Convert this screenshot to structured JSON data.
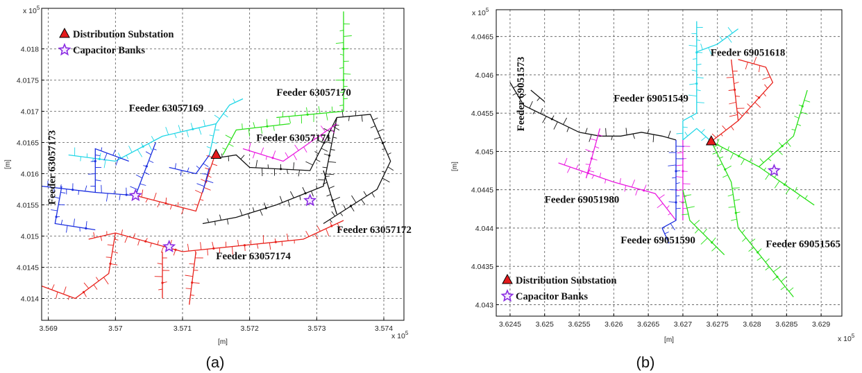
{
  "colors": {
    "red": "#e8201a",
    "cyan": "#1fd6e6",
    "green": "#27e016",
    "black": "#111111",
    "magenta": "#ea1ae0",
    "blue": "#1a2ee0",
    "purple": "#8a2be2"
  },
  "chart_data": [
    {
      "type": "map",
      "panel_label": "(a)",
      "xlabel": "[m]",
      "ylabel": "[m]",
      "x_multiplier": "x 10",
      "x_multiplier_exp": "5",
      "y_multiplier": "x 10",
      "y_multiplier_exp": "5",
      "xlim": [
        3.5689,
        3.5743
      ],
      "ylim": [
        4.01365,
        4.01865
      ],
      "x_ticks": [
        "3.569",
        "3.57",
        "3.571",
        "3.572",
        "3.573",
        "3.574"
      ],
      "x_tick_values": [
        3.569,
        3.57,
        3.571,
        3.572,
        3.573,
        3.574
      ],
      "y_ticks": [
        "4.014",
        "4.0145",
        "4.015",
        "4.0155",
        "4.016",
        "4.0165",
        "4.017",
        "4.0175",
        "4.018"
      ],
      "y_tick_values": [
        4.014,
        4.0145,
        4.015,
        4.0155,
        4.016,
        4.0165,
        4.017,
        4.0175,
        4.018
      ],
      "grid": true,
      "legend": {
        "substation": "Distribution Substation",
        "capacitor": "Capacitor Banks",
        "placement": "top-left"
      },
      "substation": {
        "x": 3.5715,
        "y": 4.0163
      },
      "capacitors": [
        {
          "x": 3.5703,
          "y": 4.01565
        },
        {
          "x": 3.5708,
          "y": 4.01483
        },
        {
          "x": 3.5729,
          "y": 4.01557
        }
      ],
      "feeders": [
        {
          "name": "Feeder 63057173",
          "color": "blue",
          "label_at": [
            3.5691,
            4.0161
          ],
          "rotate": true
        },
        {
          "name": "Feeder 63057169",
          "color": "cyan",
          "label_at": [
            3.5702,
            4.017
          ]
        },
        {
          "name": "Feeder 63057170",
          "color": "green",
          "label_at": [
            3.5724,
            4.01725
          ]
        },
        {
          "name": "Feeder 63057171",
          "color": "magenta",
          "label_at": [
            3.5721,
            4.01652
          ]
        },
        {
          "name": "Feeder 63057172",
          "color": "black",
          "label_at": [
            3.5733,
            4.01505
          ]
        },
        {
          "name": "Feeder 63057174",
          "color": "red",
          "label_at": [
            3.5715,
            4.01463
          ]
        }
      ],
      "trunks": [
        {
          "color": "red",
          "pts": [
            [
              3.5696,
              4.01495
            ],
            [
              3.57,
              4.01505
            ],
            [
              3.571,
              4.01475
            ],
            [
              3.5728,
              4.01495
            ],
            [
              3.5734,
              4.01525
            ]
          ]
        },
        {
          "color": "red",
          "pts": [
            [
              3.5703,
              4.01565
            ],
            [
              3.5712,
              4.0154
            ],
            [
              3.5715,
              4.01635
            ]
          ]
        },
        {
          "color": "red",
          "pts": [
            [
              3.57,
              4.01505
            ],
            [
              3.5699,
              4.0144
            ],
            [
              3.5694,
              4.014
            ],
            [
              3.5689,
              4.0142
            ]
          ]
        },
        {
          "color": "red",
          "pts": [
            [
              3.5712,
              4.01475
            ],
            [
              3.5711,
              4.0139
            ]
          ]
        },
        {
          "color": "red",
          "pts": [
            [
              3.5707,
              4.01475
            ],
            [
              3.5707,
              4.014
            ]
          ]
        },
        {
          "color": "black",
          "pts": [
            [
              3.5715,
              4.01625
            ],
            [
              3.5718,
              4.0163
            ],
            [
              3.572,
              4.0161
            ],
            [
              3.5729,
              4.01605
            ],
            [
              3.5733,
              4.0169
            ],
            [
              3.5738,
              4.01695
            ],
            [
              3.5741,
              4.0162
            ],
            [
              3.5739,
              4.01575
            ],
            [
              3.5731,
              4.0152
            ]
          ]
        },
        {
          "color": "black",
          "pts": [
            [
              3.5713,
              4.0152
            ],
            [
              3.5718,
              4.0153
            ],
            [
              3.5724,
              4.0155
            ],
            [
              3.5731,
              4.0158
            ],
            [
              3.5733,
              4.0169
            ]
          ]
        },
        {
          "color": "black",
          "pts": [
            [
              3.5731,
              4.01605
            ],
            [
              3.5733,
              4.01535
            ]
          ]
        },
        {
          "color": "cyan",
          "pts": [
            [
              3.5693,
              4.0163
            ],
            [
              3.57,
              4.0162
            ],
            [
              3.5707,
              4.0166
            ],
            [
              3.5715,
              4.0168
            ],
            [
              3.5717,
              4.0171
            ],
            [
              3.5719,
              4.0172
            ]
          ]
        },
        {
          "color": "cyan",
          "pts": [
            [
              3.5715,
              4.0168
            ],
            [
              3.5714,
              4.0163
            ]
          ]
        },
        {
          "color": "green",
          "pts": [
            [
              3.5716,
              4.0163
            ],
            [
              3.5718,
              4.0167
            ],
            [
              3.5726,
              4.0168
            ]
          ]
        },
        {
          "color": "green",
          "pts": [
            [
              3.5724,
              4.0169
            ],
            [
              3.5734,
              4.017
            ],
            [
              3.5734,
              4.0186
            ]
          ]
        },
        {
          "color": "magenta",
          "pts": [
            [
              3.5719,
              4.0164
            ],
            [
              3.5725,
              4.0162
            ],
            [
              3.5729,
              4.0165
            ],
            [
              3.5733,
              4.0168
            ]
          ]
        },
        {
          "color": "blue",
          "pts": [
            [
              3.5689,
              4.0158
            ],
            [
              3.5697,
              4.0157
            ],
            [
              3.5703,
              4.01565
            ]
          ]
        },
        {
          "color": "blue",
          "pts": [
            [
              3.5697,
              4.0157
            ],
            [
              3.5697,
              4.0164
            ],
            [
              3.5702,
              4.0162
            ]
          ]
        },
        {
          "color": "blue",
          "pts": [
            [
              3.5703,
              4.01565
            ],
            [
              3.5706,
              4.0165
            ]
          ]
        },
        {
          "color": "blue",
          "pts": [
            [
              3.5692,
              4.0158
            ],
            [
              3.5691,
              4.0152
            ],
            [
              3.5697,
              4.0151
            ]
          ]
        },
        {
          "color": "blue",
          "pts": [
            [
              3.5708,
              4.0161
            ],
            [
              3.5712,
              4.016
            ],
            [
              3.5714,
              4.0163
            ]
          ]
        },
        {
          "color": "blue",
          "pts": [
            [
              3.5713,
              4.0157
            ],
            [
              3.5714,
              4.0161
            ]
          ]
        }
      ]
    },
    {
      "type": "map",
      "panel_label": "(b)",
      "xlabel": "[m]",
      "ylabel": "[m]",
      "x_multiplier": "x 10",
      "x_multiplier_exp": "5",
      "y_multiplier": "x 10",
      "y_multiplier_exp": "5",
      "xlim": [
        3.6243,
        3.6293
      ],
      "ylim": [
        4.04285,
        4.04685
      ],
      "x_ticks": [
        "3.6245",
        "3.625",
        "3.6255",
        "3.626",
        "3.6265",
        "3.627",
        "3.6275",
        "3.628",
        "3.6285",
        "3.629"
      ],
      "x_tick_values": [
        3.6245,
        3.625,
        3.6255,
        3.626,
        3.6265,
        3.627,
        3.6275,
        3.628,
        3.6285,
        3.629
      ],
      "y_ticks": [
        "4.043",
        "4.0435",
        "4.044",
        "4.0445",
        "4.045",
        "4.0455",
        "4.046",
        "4.0465"
      ],
      "y_tick_values": [
        4.043,
        4.0435,
        4.044,
        4.0445,
        4.045,
        4.0455,
        4.046,
        4.0465
      ],
      "grid": true,
      "legend": {
        "substation": "Distribution Substation",
        "capacitor": "Capacitor Banks",
        "placement": "bottom-left"
      },
      "substation": {
        "x": 3.62741,
        "y": 4.04513
      },
      "capacitors": [
        {
          "x": 3.62832,
          "y": 4.04475
        }
      ],
      "feeders": [
        {
          "name": "Feeder 69051573",
          "color": "black",
          "label_at": [
            3.6247,
            4.04575
          ],
          "rotate": true
        },
        {
          "name": "Feeder 69051549",
          "color": "cyan",
          "label_at": [
            3.626,
            4.04565
          ]
        },
        {
          "name": "Feeder 69051618",
          "color": "red",
          "label_at": [
            3.6274,
            4.04625
          ]
        },
        {
          "name": "Feeder 69051980",
          "color": "magenta",
          "label_at": [
            3.625,
            4.04433
          ]
        },
        {
          "name": "Feeder 69051590",
          "color": "blue",
          "label_at": [
            3.6261,
            4.0438
          ]
        },
        {
          "name": "Feeder 69051565",
          "color": "green",
          "label_at": [
            3.6282,
            4.04375
          ]
        }
      ],
      "trunks": [
        {
          "color": "black",
          "pts": [
            [
              3.6245,
              4.0459
            ],
            [
              3.6247,
              4.0456
            ],
            [
              3.6255,
              4.04525
            ],
            [
              3.6258,
              4.0452
            ],
            [
              3.6261,
              4.0452
            ],
            [
              3.6264,
              4.04525
            ],
            [
              3.6267,
              4.0452
            ],
            [
              3.6269,
              4.04515
            ]
          ]
        },
        {
          "color": "black",
          "pts": [
            [
              3.625,
              4.04565
            ],
            [
              3.6248,
              4.0458
            ]
          ]
        },
        {
          "color": "cyan",
          "pts": [
            [
              3.6272,
              4.0467
            ],
            [
              3.6272,
              4.0455
            ],
            [
              3.627,
              4.0454
            ],
            [
              3.627,
              4.04515
            ]
          ]
        },
        {
          "color": "cyan",
          "pts": [
            [
              3.6272,
              4.0463
            ],
            [
              3.6275,
              4.0464
            ],
            [
              3.6278,
              4.0466
            ]
          ]
        },
        {
          "color": "cyan",
          "pts": [
            [
              3.627,
              4.04515
            ],
            [
              3.6272,
              4.0453
            ],
            [
              3.62741,
              4.04513
            ]
          ]
        },
        {
          "color": "magenta",
          "pts": [
            [
              3.6252,
              4.04485
            ],
            [
              3.626,
              4.0446
            ],
            [
              3.6266,
              4.04445
            ],
            [
              3.6269,
              4.0441
            ]
          ]
        },
        {
          "color": "magenta",
          "pts": [
            [
              3.6258,
              4.0453
            ],
            [
              3.6256,
              4.04465
            ]
          ]
        },
        {
          "color": "magenta",
          "pts": [
            [
              3.627,
              4.04515
            ],
            [
              3.627,
              4.0441
            ]
          ]
        },
        {
          "color": "blue",
          "pts": [
            [
              3.6269,
              4.04515
            ],
            [
              3.6269,
              4.0441
            ],
            [
              3.6267,
              4.044
            ],
            [
              3.6268,
              4.0438
            ]
          ]
        },
        {
          "color": "red",
          "pts": [
            [
              3.62741,
              4.04513
            ],
            [
              3.6278,
              4.0454
            ],
            [
              3.6283,
              4.0459
            ],
            [
              3.6282,
              4.0461
            ],
            [
              3.6278,
              4.0462
            ]
          ]
        },
        {
          "color": "red",
          "pts": [
            [
              3.6278,
              4.0454
            ],
            [
              3.6277,
              4.0462
            ]
          ]
        },
        {
          "color": "green",
          "pts": [
            [
              3.62741,
              4.04513
            ],
            [
              3.6281,
              4.0448
            ],
            [
              3.6289,
              4.0443
            ]
          ]
        },
        {
          "color": "green",
          "pts": [
            [
              3.62741,
              4.04513
            ],
            [
              3.6277,
              4.0446
            ],
            [
              3.6278,
              4.044
            ],
            [
              3.6286,
              4.0431
            ]
          ]
        },
        {
          "color": "green",
          "pts": [
            [
              3.6281,
              4.0448
            ],
            [
              3.6286,
              4.0452
            ],
            [
              3.6288,
              4.0458
            ]
          ]
        },
        {
          "color": "green",
          "pts": [
            [
              3.627,
              4.0445
            ],
            [
              3.6271,
              4.0441
            ],
            [
              3.6276,
              4.04365
            ]
          ]
        }
      ]
    }
  ]
}
